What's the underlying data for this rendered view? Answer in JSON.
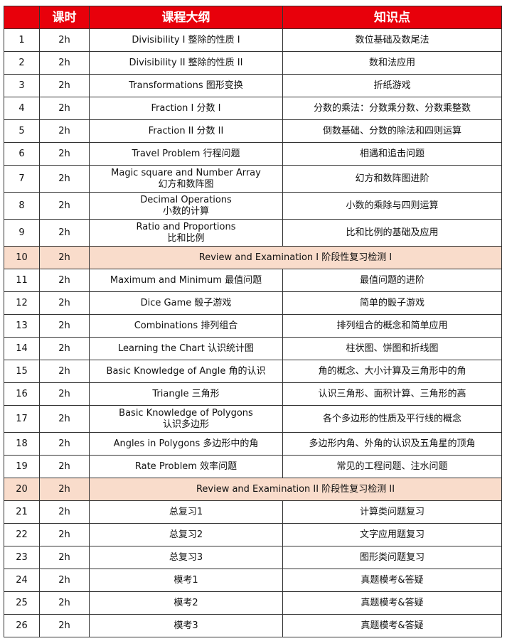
{
  "colors": {
    "header_bg": "#e8000b",
    "review_bg": "#f9dccb"
  },
  "headers": [
    "",
    "课时",
    "课程大纲",
    "知识点"
  ],
  "rows": [
    {
      "no": "1",
      "hours": "2h",
      "outline": "Divisibility I 整除的性质 I",
      "points": "数位基础及数尾法"
    },
    {
      "no": "2",
      "hours": "2h",
      "outline": "Divisibility II 整除的性质 II",
      "points": "数和法应用"
    },
    {
      "no": "3",
      "hours": "2h",
      "outline": "Transformations 图形变换",
      "points": "折纸游戏"
    },
    {
      "no": "4",
      "hours": "2h",
      "outline": "Fraction I 分数 I",
      "points": "分数的乘法：分数乘分数、分数乘整数"
    },
    {
      "no": "5",
      "hours": "2h",
      "outline": "Fraction II 分数 II",
      "points": "倒数基础、分数的除法和四则运算"
    },
    {
      "no": "6",
      "hours": "2h",
      "outline": "Travel Problem 行程问题",
      "points": "相遇和追击问题"
    },
    {
      "no": "7",
      "hours": "2h",
      "outline": "Magic square and Number Array",
      "outline2": "幻方和数阵图",
      "points": "幻方和数阵图进阶"
    },
    {
      "no": "8",
      "hours": "2h",
      "outline": "Decimal Operations",
      "outline2": "小数的计算",
      "points": "小数的乘除与四则运算"
    },
    {
      "no": "9",
      "hours": "2h",
      "outline": "Ratio and Proportions",
      "outline2": "比和比例",
      "points": "比和比例的基础及应用"
    },
    {
      "no": "10",
      "hours": "2h",
      "outline": "Review and Examination  I 阶段性复习检测 I",
      "review": true
    },
    {
      "no": "11",
      "hours": "2h",
      "outline": "Maximum and Minimum 最值问题",
      "points": "最值问题的进阶"
    },
    {
      "no": "12",
      "hours": "2h",
      "outline": "Dice Game 骰子游戏",
      "points": "简单的骰子游戏"
    },
    {
      "no": "13",
      "hours": "2h",
      "outline": "Combinations 排列组合",
      "points": "排列组合的概念和简单应用"
    },
    {
      "no": "14",
      "hours": "2h",
      "outline": "Learning the Chart 认识统计图",
      "points": "柱状图、饼图和折线图"
    },
    {
      "no": "15",
      "hours": "2h",
      "outline": "Basic Knowledge of Angle 角的认识",
      "points": "角的概念、大小计算及三角形中的角"
    },
    {
      "no": "16",
      "hours": "2h",
      "outline": "Triangle 三角形",
      "points": "认识三角形、面积计算、三角形的高"
    },
    {
      "no": "17",
      "hours": "2h",
      "outline": "Basic Knowledge of Polygons",
      "outline2": "认识多边形",
      "points": "各个多边形的性质及平行线的概念"
    },
    {
      "no": "18",
      "hours": "2h",
      "outline": "Angles in Polygons 多边形中的角",
      "points": "多边形内角、外角的认识及五角星的顶角"
    },
    {
      "no": "19",
      "hours": "2h",
      "outline": "Rate Problem 效率问题",
      "points": "常见的工程问题、注水问题"
    },
    {
      "no": "20",
      "hours": "2h",
      "outline": "Review and Examination II 阶段性复习检测 II",
      "review": true
    },
    {
      "no": "21",
      "hours": "2h",
      "outline": "总复习1",
      "points": "计算类问题复习"
    },
    {
      "no": "22",
      "hours": "2h",
      "outline": "总复习2",
      "points": "文字应用题复习"
    },
    {
      "no": "23",
      "hours": "2h",
      "outline": "总复习3",
      "points": "图形类问题复习"
    },
    {
      "no": "24",
      "hours": "2h",
      "outline": "模考1",
      "points": "真题模考&答疑"
    },
    {
      "no": "25",
      "hours": "2h",
      "outline": "模考2",
      "points": "真题模考&答疑"
    },
    {
      "no": "26",
      "hours": "2h",
      "outline": "模考3",
      "points": "真题模考&答疑"
    }
  ]
}
